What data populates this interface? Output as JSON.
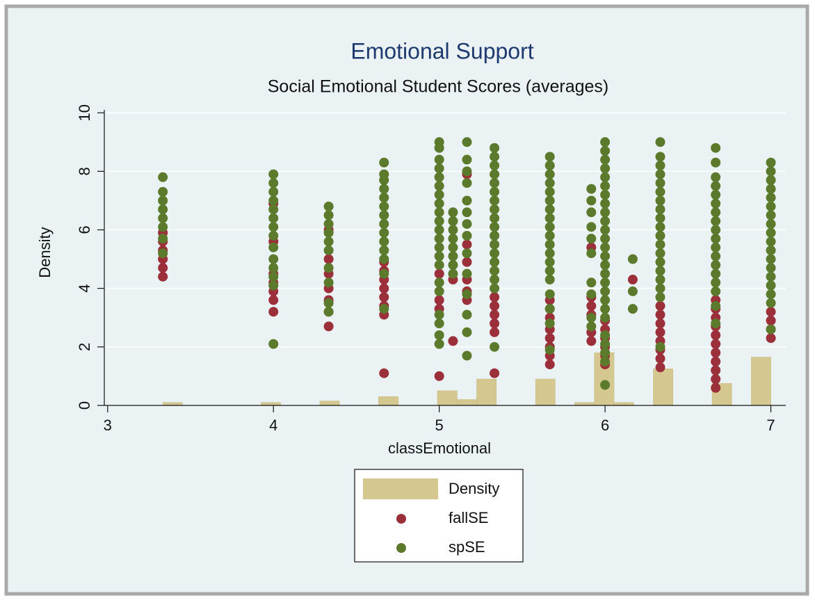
{
  "chart_data": {
    "type": "scatter",
    "title": "Emotional Support",
    "subtitle": "Social Emotional Student Scores (averages)",
    "x_label": "classEmotional",
    "y_label": "Density",
    "xlim": [
      2.98,
      7.09
    ],
    "ylim": [
      0,
      10.1
    ],
    "xticks": [
      3,
      4,
      5,
      6,
      7
    ],
    "yticks": [
      0,
      2,
      4,
      6,
      8,
      10
    ],
    "grid": true,
    "histogram": {
      "name": "Density",
      "color": "#d4c890",
      "bins": [
        3.333,
        3.451,
        3.57,
        3.688,
        3.806,
        3.925,
        4.043,
        4.161,
        4.28,
        4.398,
        4.516,
        4.634,
        4.753,
        4.871,
        4.989,
        5.108,
        5.226,
        5.344,
        5.463,
        5.581,
        5.699,
        5.817,
        5.936,
        6.054,
        6.172,
        6.291,
        6.409,
        6.527,
        6.646,
        6.764,
        6.882,
        7.0
      ],
      "counts": [
        0.1,
        0,
        0,
        0,
        0,
        0.1,
        0,
        0,
        0.15,
        0,
        0,
        0.3,
        0,
        0,
        0.5,
        0.2,
        0.9,
        0,
        0,
        0.9,
        0,
        0.1,
        1.8,
        0.1,
        0,
        1.25,
        0,
        0,
        0.75,
        0,
        1.65
      ]
    },
    "series": [
      {
        "name": "fallSE",
        "color": "#9b2f3a",
        "x": [
          3.333,
          3.333,
          3.333,
          3.333,
          3.333,
          3.333,
          4,
          4,
          4,
          4,
          4,
          4,
          4,
          4.333,
          4.333,
          4.333,
          4.333,
          4.333,
          4.333,
          4.333,
          4.667,
          4.667,
          4.667,
          4.667,
          4.667,
          4.667,
          4.667,
          4.667,
          5,
          5,
          5,
          5,
          5.083,
          5.083,
          5.167,
          5.167,
          5.167,
          5.167,
          5.167,
          5.167,
          5.333,
          5.333,
          5.333,
          5.333,
          5.333,
          5.333,
          5.667,
          5.667,
          5.667,
          5.667,
          5.667,
          5.667,
          5.667,
          5.667,
          5.917,
          5.917,
          5.917,
          5.917,
          5.917,
          5.917,
          6,
          6,
          6,
          6,
          6,
          6,
          6.167,
          6.333,
          6.333,
          6.333,
          6.333,
          6.333,
          6.333,
          6.333,
          6.333,
          6.667,
          6.667,
          6.667,
          6.667,
          6.667,
          6.667,
          6.667,
          6.667,
          6.667,
          6.667,
          6.667,
          7,
          7,
          7,
          7
        ],
        "values": [
          4.4,
          4.7,
          5.0,
          5.3,
          5.6,
          5.9,
          3.2,
          3.6,
          3.9,
          4.2,
          4.5,
          5.6,
          6.9,
          2.7,
          3.2,
          3.6,
          4.0,
          4.5,
          5.0,
          6.0,
          1.1,
          3.1,
          3.4,
          3.7,
          4.0,
          4.3,
          4.6,
          4.9,
          1.0,
          3.3,
          3.6,
          4.5,
          2.2,
          4.3,
          3.6,
          3.9,
          4.3,
          4.9,
          5.5,
          7.9,
          1.1,
          2.5,
          2.8,
          3.1,
          3.4,
          3.7,
          1.4,
          1.7,
          2.0,
          2.3,
          2.6,
          3.0,
          3.3,
          3.6,
          2.2,
          2.5,
          3.1,
          3.4,
          3.7,
          5.4,
          1.4,
          1.7,
          2.0,
          2.3,
          2.6,
          2.9,
          4.3,
          1.3,
          1.6,
          1.9,
          2.2,
          2.5,
          2.8,
          3.1,
          3.4,
          0.6,
          0.9,
          1.2,
          1.5,
          1.8,
          2.1,
          2.4,
          2.7,
          3.0,
          3.3,
          3.6,
          2.3,
          2.6,
          2.9,
          3.2
        ]
      },
      {
        "name": "spSE",
        "color": "#5b7a2c",
        "x": [
          3.333,
          3.333,
          3.333,
          3.333,
          3.333,
          3.333,
          3.333,
          3.333,
          4,
          4,
          4,
          4,
          4,
          4,
          4,
          4,
          4,
          4,
          4,
          4,
          4,
          4,
          4.333,
          4.333,
          4.333,
          4.333,
          4.333,
          4.333,
          4.333,
          4.333,
          4.333,
          4.333,
          4.667,
          4.667,
          4.667,
          4.667,
          4.667,
          4.667,
          4.667,
          4.667,
          4.667,
          4.667,
          4.667,
          4.667,
          4.667,
          4.667,
          5,
          5,
          5,
          5,
          5,
          5,
          5,
          5,
          5,
          5,
          5,
          5,
          5,
          5,
          5,
          5,
          5,
          5,
          5,
          5,
          5,
          5.083,
          5.083,
          5.083,
          5.083,
          5.083,
          5.083,
          5.083,
          5.083,
          5.167,
          5.167,
          5.167,
          5.167,
          5.167,
          5.167,
          5.167,
          5.167,
          5.167,
          5.167,
          5.167,
          5.167,
          5.167,
          5.167,
          5.333,
          5.333,
          5.333,
          5.333,
          5.333,
          5.333,
          5.333,
          5.333,
          5.333,
          5.333,
          5.333,
          5.333,
          5.333,
          5.333,
          5.333,
          5.333,
          5.333,
          5.333,
          5.667,
          5.667,
          5.667,
          5.667,
          5.667,
          5.667,
          5.667,
          5.667,
          5.667,
          5.667,
          5.667,
          5.667,
          5.667,
          5.667,
          5.667,
          5.667,
          5.667,
          5.667,
          5.667,
          5.917,
          5.917,
          5.917,
          5.917,
          5.917,
          5.917,
          5.917,
          5.917,
          5.917,
          5.917,
          6,
          6,
          6,
          6,
          6,
          6,
          6,
          6,
          6,
          6,
          6,
          6,
          6,
          6,
          6,
          6,
          6,
          6,
          6,
          6,
          6,
          6,
          6,
          6,
          6,
          6,
          6.167,
          6.167,
          6.167,
          6.333,
          6.333,
          6.333,
          6.333,
          6.333,
          6.333,
          6.333,
          6.333,
          6.333,
          6.333,
          6.333,
          6.333,
          6.333,
          6.333,
          6.333,
          6.333,
          6.333,
          6.333,
          6.333,
          6.667,
          6.667,
          6.667,
          6.667,
          6.667,
          6.667,
          6.667,
          6.667,
          6.667,
          6.667,
          6.667,
          6.667,
          6.667,
          6.667,
          6.667,
          6.667,
          6.667,
          6.667,
          7,
          7,
          7,
          7,
          7,
          7,
          7,
          7,
          7,
          7,
          7,
          7,
          7,
          7,
          7,
          7,
          7,
          7
        ],
        "values": [
          5.2,
          5.7,
          6.1,
          6.4,
          6.7,
          7.0,
          7.3,
          7.8,
          2.1,
          4.1,
          4.4,
          4.7,
          5.0,
          5.4,
          5.8,
          6.1,
          6.4,
          6.7,
          7.0,
          7.3,
          7.6,
          7.9,
          3.2,
          3.5,
          4.2,
          4.7,
          5.3,
          5.6,
          5.9,
          6.2,
          6.5,
          6.8,
          3.3,
          4.5,
          5.0,
          5.3,
          5.6,
          5.9,
          6.2,
          6.5,
          6.8,
          7.1,
          7.4,
          7.7,
          7.9,
          8.3,
          2.1,
          2.4,
          2.8,
          3.1,
          3.9,
          4.2,
          4.8,
          5.1,
          5.4,
          5.7,
          6.0,
          6.3,
          6.6,
          6.9,
          7.2,
          7.5,
          7.8,
          8.1,
          8.4,
          8.8,
          9.0,
          4.5,
          4.8,
          5.1,
          5.4,
          5.7,
          6.0,
          6.3,
          6.6,
          1.7,
          2.5,
          3.1,
          3.8,
          4.5,
          5.2,
          5.8,
          6.2,
          6.6,
          7.0,
          7.6,
          8.0,
          8.4,
          9.0,
          2.0,
          4.0,
          4.3,
          4.6,
          4.9,
          5.2,
          5.5,
          5.8,
          6.1,
          6.4,
          6.7,
          7.0,
          7.3,
          7.6,
          7.9,
          8.2,
          8.5,
          8.8,
          1.9,
          2.8,
          3.3,
          3.8,
          4.3,
          4.6,
          4.9,
          5.2,
          5.5,
          5.8,
          6.1,
          6.4,
          6.7,
          7.0,
          7.3,
          7.6,
          7.9,
          8.2,
          8.5,
          2.7,
          3.0,
          3.8,
          4.2,
          5.2,
          5.7,
          6.1,
          6.6,
          7.0,
          7.4,
          0.7,
          1.5,
          1.8,
          2.1,
          2.4,
          3.0,
          3.3,
          3.6,
          3.9,
          4.2,
          4.5,
          4.8,
          5.1,
          5.4,
          5.7,
          6.0,
          6.3,
          6.6,
          6.9,
          7.2,
          7.5,
          7.8,
          8.1,
          8.4,
          8.7,
          9.0,
          3.3,
          3.9,
          5.0,
          2.0,
          3.7,
          4.0,
          4.3,
          4.6,
          4.9,
          5.2,
          5.5,
          5.8,
          6.1,
          6.4,
          6.7,
          7.0,
          7.3,
          7.6,
          7.9,
          8.2,
          8.5,
          9.0,
          2.8,
          3.4,
          3.9,
          4.2,
          4.5,
          4.8,
          5.1,
          5.4,
          5.7,
          6.0,
          6.3,
          6.6,
          6.9,
          7.2,
          7.5,
          7.8,
          8.3,
          8.8,
          2.6,
          3.5,
          3.8,
          4.1,
          4.4,
          4.7,
          5.0,
          5.3,
          5.6,
          5.9,
          6.2,
          6.5,
          6.8,
          7.1,
          7.4,
          7.7,
          8.0,
          8.3
        ]
      }
    ]
  }
}
